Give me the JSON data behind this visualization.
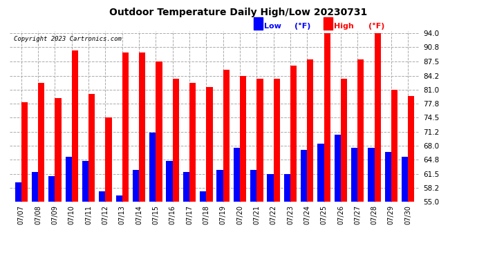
{
  "title": "Outdoor Temperature Daily High/Low 20230731",
  "copyright": "Copyright 2023 Cartronics.com",
  "legend_low": "Low",
  "legend_high": "High",
  "legend_unit": "(°F)",
  "dates": [
    "07/07",
    "07/08",
    "07/09",
    "07/10",
    "07/11",
    "07/12",
    "07/13",
    "07/14",
    "07/15",
    "07/16",
    "07/17",
    "07/18",
    "07/19",
    "07/20",
    "07/21",
    "07/22",
    "07/23",
    "07/24",
    "07/25",
    "07/26",
    "07/27",
    "07/28",
    "07/29",
    "07/30"
  ],
  "highs": [
    78.0,
    82.5,
    79.0,
    90.0,
    80.0,
    74.5,
    89.5,
    89.5,
    87.5,
    83.5,
    82.5,
    81.5,
    85.5,
    84.2,
    83.5,
    83.5,
    86.5,
    88.0,
    94.0,
    83.5,
    88.0,
    94.0,
    81.0,
    79.5
  ],
  "lows": [
    59.5,
    62.0,
    61.0,
    65.5,
    64.5,
    57.5,
    56.5,
    62.5,
    71.0,
    64.5,
    62.0,
    57.5,
    62.5,
    67.5,
    62.5,
    61.5,
    61.5,
    67.0,
    68.5,
    70.5,
    67.5,
    67.5,
    66.5,
    65.5
  ],
  "high_color": "#ff0000",
  "low_color": "#0000ff",
  "background_color": "#ffffff",
  "grid_color": "#aaaaaa",
  "ymin": 55.0,
  "ymax": 94.0,
  "yticks": [
    55.0,
    58.2,
    61.5,
    64.8,
    68.0,
    71.2,
    74.5,
    77.8,
    81.0,
    84.2,
    87.5,
    90.8,
    94.0
  ],
  "bar_width": 0.38,
  "figwidth": 6.9,
  "figheight": 3.75,
  "dpi": 100
}
